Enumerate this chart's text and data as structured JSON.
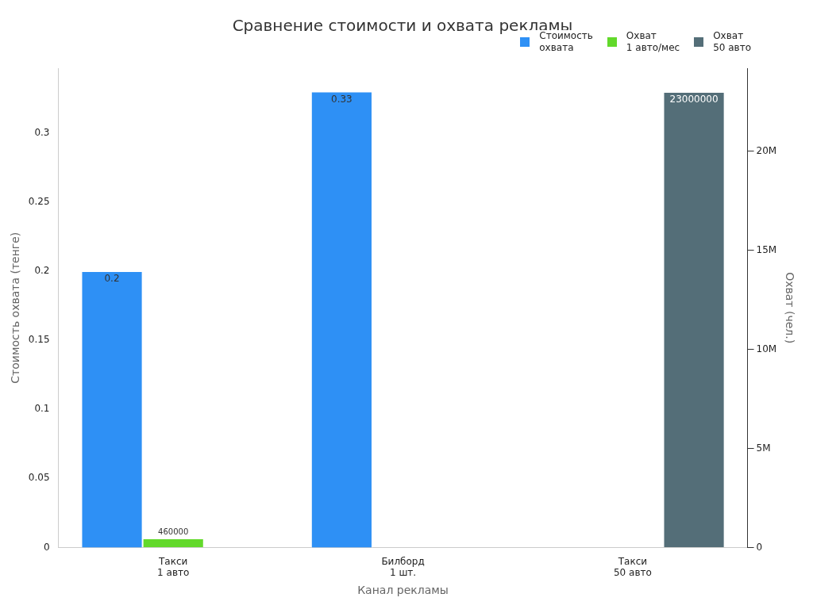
{
  "chart_data": {
    "type": "bar",
    "title": "Сравнение стоимости и охвата рекламы",
    "xlabel": "Канал рекламы",
    "ylabel": "Стоимость охвата (тенге)",
    "y2label": "Охват (чел.)",
    "categories": [
      "Такси\n1 авто",
      "Билборд\n1 шт.",
      "Такси\n50 авто"
    ],
    "series": [
      {
        "name": "Стоимость\nохвата",
        "color": "#2e90f5",
        "values": [
          0.2,
          0.33,
          null
        ]
      },
      {
        "name": "Охват\n1 авто/мес",
        "color": "#62d92b",
        "values": [
          460000,
          null,
          null
        ],
        "axis": "y2"
      },
      {
        "name": "Охват\n50 авто",
        "color": "#546e78",
        "values": [
          null,
          null,
          23000000
        ],
        "axis": "y2"
      }
    ],
    "ylim": [
      0,
      0.347
    ],
    "yticks": [
      0,
      0.05,
      0.1,
      0.15,
      0.2,
      0.25,
      0.3
    ],
    "y2lim": [
      0,
      24200000
    ],
    "y2ticks": [
      {
        "value": 0,
        "label": "0"
      },
      {
        "value": 5000000,
        "label": "5M"
      },
      {
        "value": 10000000,
        "label": "10M"
      },
      {
        "value": 15000000,
        "label": "15M"
      },
      {
        "value": 20000000,
        "label": "20M"
      }
    ],
    "data_labels": true,
    "legend": "top right",
    "grid": false
  }
}
